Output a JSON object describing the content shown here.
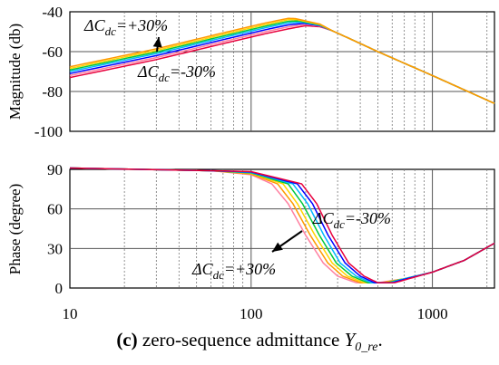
{
  "chart_data": [
    {
      "type": "line",
      "ylabel": "Magnitude (db)",
      "x_scale": "log",
      "xlim": [
        10,
        2200
      ],
      "ylim": [
        -100,
        -40
      ],
      "yticks": [
        "-40",
        "-60",
        "-80",
        "-100"
      ],
      "grid": true,
      "annotations": [
        {
          "text": "ΔC",
          "sub": "dc",
          "value": "=+30%"
        },
        {
          "text": "ΔC",
          "sub": "dc",
          "value": "=-30%"
        }
      ],
      "series": [
        {
          "color": "#e8003c",
          "values": [
            [
              10,
              -73
            ],
            [
              30,
              -64
            ],
            [
              70,
              -56
            ],
            [
              120,
              -51
            ],
            [
              160,
              -48.6
            ],
            [
              200,
              -47
            ],
            [
              240,
              -47.5
            ],
            [
              280,
              -49.5
            ],
            [
              350,
              -53.5
            ],
            [
              500,
              -60
            ],
            [
              1000,
              -72
            ],
            [
              2200,
              -86
            ]
          ]
        },
        {
          "color": "#ff7fa0",
          "values": [
            [
              10,
              -72
            ],
            [
              30,
              -63
            ],
            [
              70,
              -55
            ],
            [
              120,
              -50
            ],
            [
              160,
              -47.6
            ],
            [
              200,
              -46.3
            ],
            [
              240,
              -47.2
            ],
            [
              280,
              -49.5
            ],
            [
              350,
              -53.5
            ],
            [
              500,
              -60
            ],
            [
              1000,
              -72
            ],
            [
              2200,
              -86
            ]
          ]
        },
        {
          "color": "#0000ff",
          "values": [
            [
              10,
              -71
            ],
            [
              30,
              -62
            ],
            [
              70,
              -54
            ],
            [
              120,
              -49
            ],
            [
              160,
              -46.6
            ],
            [
              195,
              -45.8
            ],
            [
              240,
              -47
            ],
            [
              280,
              -49.5
            ],
            [
              350,
              -53.5
            ],
            [
              500,
              -60
            ],
            [
              1000,
              -72
            ],
            [
              2200,
              -86
            ]
          ]
        },
        {
          "color": "#00b7ff",
          "values": [
            [
              10,
              -70
            ],
            [
              30,
              -61
            ],
            [
              70,
              -53
            ],
            [
              120,
              -48
            ],
            [
              160,
              -45.6
            ],
            [
              190,
              -45.2
            ],
            [
              240,
              -46.8
            ],
            [
              280,
              -49.5
            ],
            [
              350,
              -53.5
            ],
            [
              500,
              -60
            ],
            [
              1000,
              -72
            ],
            [
              2200,
              -86
            ]
          ]
        },
        {
          "color": "#00c83c",
          "values": [
            [
              10,
              -69.2
            ],
            [
              30,
              -60.2
            ],
            [
              70,
              -52.2
            ],
            [
              120,
              -47.2
            ],
            [
              160,
              -44.8
            ],
            [
              185,
              -44.6
            ],
            [
              240,
              -46.6
            ],
            [
              280,
              -49.5
            ],
            [
              350,
              -53.5
            ],
            [
              500,
              -60
            ],
            [
              1000,
              -72
            ],
            [
              2200,
              -86
            ]
          ]
        },
        {
          "color": "#ffd400",
          "values": [
            [
              10,
              -68.4
            ],
            [
              30,
              -59.4
            ],
            [
              70,
              -51.4
            ],
            [
              120,
              -46.4
            ],
            [
              160,
              -44
            ],
            [
              180,
              -44
            ],
            [
              240,
              -46.4
            ],
            [
              280,
              -49.5
            ],
            [
              350,
              -53.5
            ],
            [
              500,
              -60
            ],
            [
              1000,
              -72
            ],
            [
              2200,
              -86
            ]
          ]
        },
        {
          "color": "#ff9900",
          "values": [
            [
              10,
              -67.6
            ],
            [
              30,
              -58.6
            ],
            [
              70,
              -50.6
            ],
            [
              120,
              -45.6
            ],
            [
              160,
              -43.3
            ],
            [
              175,
              -43.4
            ],
            [
              240,
              -46.2
            ],
            [
              280,
              -49.5
            ],
            [
              350,
              -53.5
            ],
            [
              500,
              -60
            ],
            [
              1000,
              -72
            ],
            [
              2200,
              -86
            ]
          ]
        }
      ]
    },
    {
      "type": "line",
      "xlabel": "",
      "ylabel": "Phase (degree)",
      "x_scale": "log",
      "xlim": [
        10,
        2200
      ],
      "ylim": [
        0,
        90
      ],
      "xticks": [
        "10",
        "100",
        "1000"
      ],
      "yticks": [
        "90",
        "60",
        "30",
        "0"
      ],
      "grid": true,
      "annotations": [
        {
          "text": "ΔC",
          "sub": "dc",
          "value": "=-30%"
        },
        {
          "text": "ΔC",
          "sub": "dc",
          "value": "=+30%"
        }
      ],
      "series": [
        {
          "color": "#ff7fa0",
          "values": [
            [
              10,
              91
            ],
            [
              60,
              89
            ],
            [
              100,
              86
            ],
            [
              130,
              79
            ],
            [
              160,
              64
            ],
            [
              200,
              40
            ],
            [
              250,
              19
            ],
            [
              300,
              9
            ],
            [
              380,
              4
            ],
            [
              500,
              4
            ],
            [
              700,
              7
            ],
            [
              1000,
              12
            ],
            [
              1500,
              21
            ],
            [
              2200,
              34
            ]
          ]
        },
        {
          "color": "#ff9900",
          "values": [
            [
              10,
              91
            ],
            [
              60,
              89
            ],
            [
              100,
              86.5
            ],
            [
              140,
              79
            ],
            [
              170,
              64
            ],
            [
              212,
              40
            ],
            [
              265,
              19
            ],
            [
              320,
              9
            ],
            [
              400,
              4
            ],
            [
              520,
              4
            ],
            [
              700,
              7
            ],
            [
              1000,
              12
            ],
            [
              1500,
              21
            ],
            [
              2200,
              34
            ]
          ]
        },
        {
          "color": "#ffd400",
          "values": [
            [
              10,
              91
            ],
            [
              60,
              89
            ],
            [
              100,
              87
            ],
            [
              150,
              79
            ],
            [
              180,
              64
            ],
            [
              225,
              40
            ],
            [
              280,
              19
            ],
            [
              340,
              9
            ],
            [
              420,
              4
            ],
            [
              540,
              4
            ],
            [
              700,
              7
            ],
            [
              1000,
              12
            ],
            [
              1500,
              21
            ],
            [
              2200,
              34
            ]
          ]
        },
        {
          "color": "#00c83c",
          "values": [
            [
              10,
              91
            ],
            [
              60,
              89
            ],
            [
              100,
              87.3
            ],
            [
              160,
              79
            ],
            [
              192,
              64
            ],
            [
              238,
              40
            ],
            [
              295,
              19
            ],
            [
              360,
              9
            ],
            [
              440,
              4
            ],
            [
              560,
              4
            ],
            [
              700,
              7
            ],
            [
              1000,
              12
            ],
            [
              1500,
              21
            ],
            [
              2200,
              34
            ]
          ]
        },
        {
          "color": "#00b7ff",
          "values": [
            [
              10,
              91
            ],
            [
              60,
              89
            ],
            [
              100,
              87.6
            ],
            [
              170,
              79
            ],
            [
              205,
              64
            ],
            [
              252,
              40
            ],
            [
              310,
              19
            ],
            [
              380,
              9
            ],
            [
              460,
              4
            ],
            [
              580,
              4
            ],
            [
              700,
              7
            ],
            [
              1000,
              12
            ],
            [
              1500,
              21
            ],
            [
              2200,
              34
            ]
          ]
        },
        {
          "color": "#0000ff",
          "values": [
            [
              10,
              91
            ],
            [
              60,
              89
            ],
            [
              100,
              88
            ],
            [
              180,
              79
            ],
            [
              218,
              64
            ],
            [
              266,
              40
            ],
            [
              330,
              19
            ],
            [
              400,
              9
            ],
            [
              480,
              4
            ],
            [
              600,
              4
            ],
            [
              720,
              7
            ],
            [
              1000,
              12
            ],
            [
              1500,
              21
            ],
            [
              2200,
              34
            ]
          ]
        },
        {
          "color": "#e8003c",
          "values": [
            [
              10,
              91
            ],
            [
              60,
              89
            ],
            [
              100,
              88.3
            ],
            [
              190,
              79
            ],
            [
              230,
              64
            ],
            [
              280,
              40
            ],
            [
              345,
              19
            ],
            [
              420,
              9
            ],
            [
              500,
              4
            ],
            [
              620,
              4
            ],
            [
              740,
              7
            ],
            [
              1000,
              12
            ],
            [
              1500,
              21
            ],
            [
              2200,
              34
            ]
          ]
        }
      ]
    }
  ],
  "caption": {
    "label": "(c)",
    "text": " zero-sequence admittance ",
    "symbol": "Y",
    "sub": "0_re",
    "end": "."
  }
}
